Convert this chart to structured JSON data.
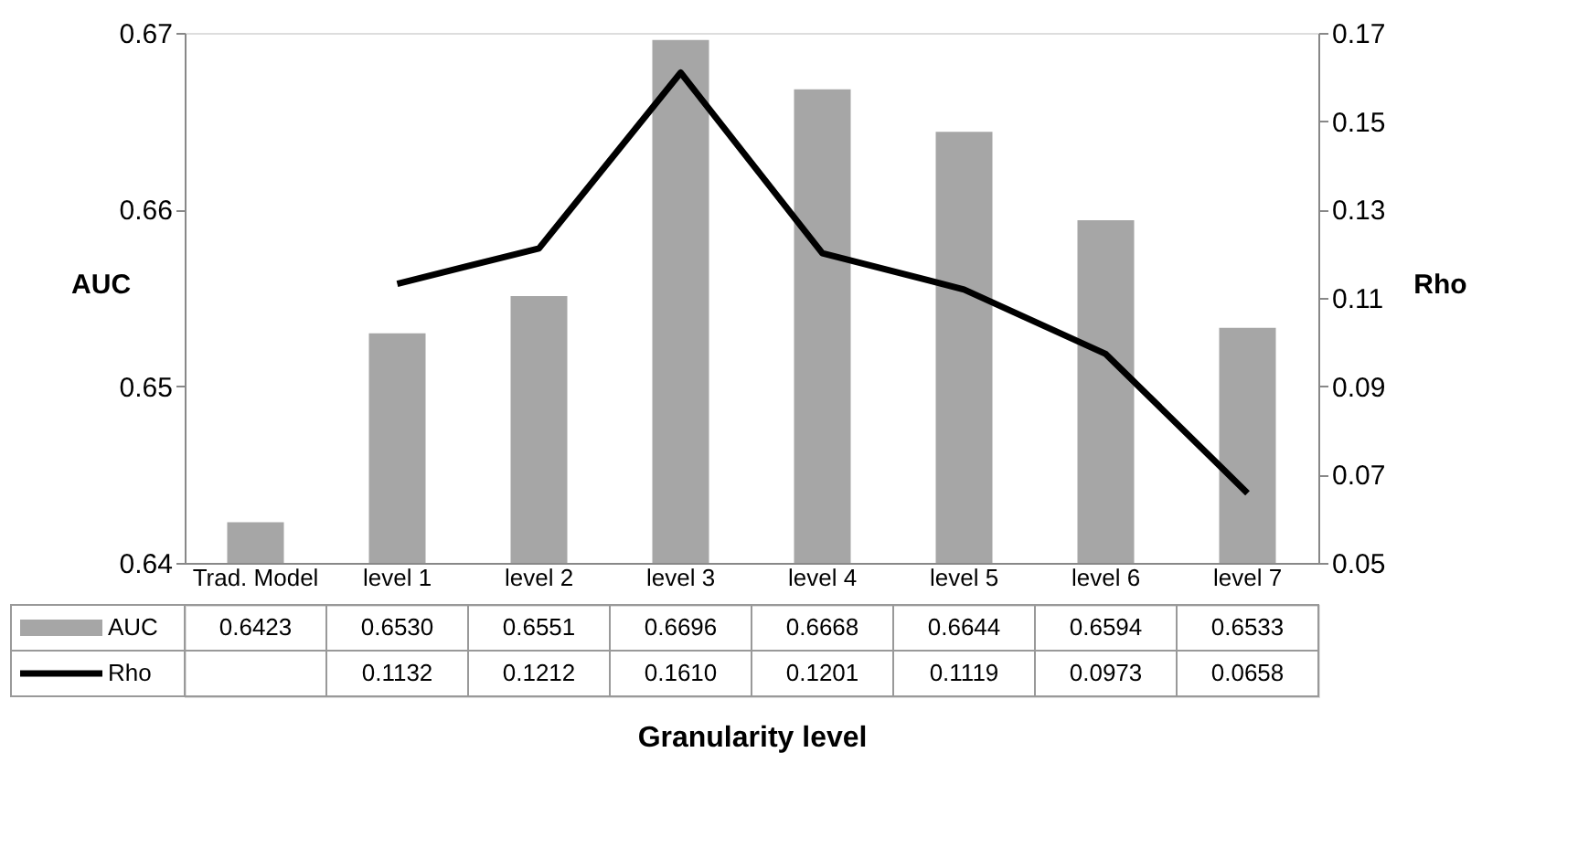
{
  "chart_data": {
    "type": "bar",
    "categories": [
      "Trad. Model",
      "level 1",
      "level 2",
      "level 3",
      "level 4",
      "level 5",
      "level 6",
      "level 7"
    ],
    "series": [
      {
        "name": "AUC",
        "color": "#a6a6a6",
        "values": [
          0.6423,
          0.653,
          0.6551,
          0.6696,
          0.6668,
          0.6644,
          0.6594,
          0.6533
        ],
        "value_labels": [
          "0.6423",
          "0.6530",
          "0.6551",
          "0.6696",
          "0.6668",
          "0.6644",
          "0.6594",
          "0.6533"
        ]
      },
      {
        "name": "Rho",
        "type": "line",
        "axis": "y2",
        "color": "#000000",
        "values": [
          null,
          0.1132,
          0.1212,
          0.161,
          0.1201,
          0.1119,
          0.0973,
          0.0658
        ],
        "value_labels": [
          null,
          "0.1132",
          "0.1212",
          "0.1610",
          "0.1201",
          "0.1119",
          "0.0973",
          "0.0658"
        ]
      }
    ],
    "xlabel": "Granularity level",
    "ylabel": "AUC",
    "y2label": "Rho",
    "ylim": [
      0.64,
      0.67
    ],
    "yticks": [
      0.64,
      0.65,
      0.66,
      0.67
    ],
    "y2lim": [
      0.05,
      0.17
    ],
    "y2ticks": [
      0.05,
      0.07,
      0.09,
      0.11,
      0.13,
      0.15,
      0.17
    ],
    "legend": "bottom",
    "grid": false
  }
}
